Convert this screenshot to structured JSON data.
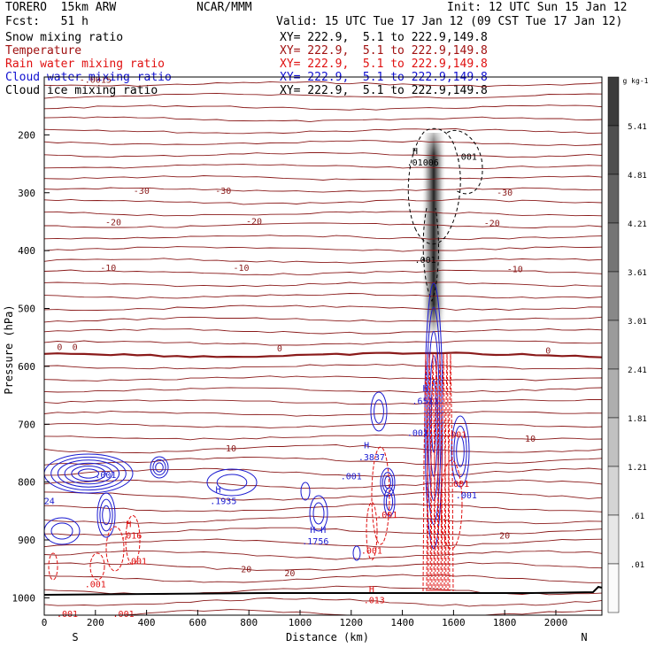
{
  "header": {
    "title": "TORERO  15km ARW",
    "org": "NCAR/MMM",
    "init": "Init: 12 UTC Sun 15 Jan 12",
    "fcst": "Fcst:   51 h",
    "valid": "Valid: 15 UTC Tue 17 Jan 12 (09 CST Tue 17 Jan 12)"
  },
  "legend": [
    {
      "label": "Snow mixing ratio",
      "xy": "XY= 222.9,  5.1 to 222.9,149.8",
      "color": "#000000"
    },
    {
      "label": "Temperature",
      "xy": "XY= 222.9,  5.1 to 222.9,149.8",
      "color": "#a01010"
    },
    {
      "label": "Rain water mixing ratio",
      "xy": "XY= 222.9,  5.1 to 222.9,149.8",
      "color": "#e01010"
    },
    {
      "label": "Cloud water mixing ratio",
      "xy": "XY= 222.9,  5.1 to 222.9,149.8",
      "color": "#1010d0"
    },
    {
      "label": "Cloud ice mixing ratio",
      "xy": "XY= 222.9,  5.1 to 222.9,149.8",
      "color": "#000000"
    }
  ],
  "chart_data": {
    "type": "cross-section contour",
    "xlabel": "Distance (km)",
    "ylabel": "Pressure (hPa)",
    "xlim": [
      0,
      2180
    ],
    "ylim": [
      1030,
      100
    ],
    "x_ticks": [
      0,
      200,
      400,
      600,
      800,
      1000,
      1200,
      1400,
      1600,
      1800,
      2000
    ],
    "y_ticks": [
      200,
      300,
      400,
      500,
      600,
      700,
      800,
      900,
      1000
    ],
    "x_end_labels": [
      "S",
      "N"
    ],
    "colorbar": {
      "unit": "g kg-1",
      "labels": [
        "5.41",
        "4.81",
        "4.21",
        "3.61",
        "3.01",
        "2.41",
        "1.81",
        "1.21",
        ".61",
        ".01"
      ]
    },
    "temperature_labels": [
      {
        "text": "-30",
        "x": 380,
        "p": 302
      },
      {
        "text": "-30",
        "x": 700,
        "p": 302
      },
      {
        "text": "-30",
        "x": 1800,
        "p": 305
      },
      {
        "text": "-20",
        "x": 270,
        "p": 356
      },
      {
        "text": "-20",
        "x": 820,
        "p": 355
      },
      {
        "text": "-20",
        "x": 1750,
        "p": 358
      },
      {
        "text": "-10",
        "x": 250,
        "p": 435
      },
      {
        "text": "-10",
        "x": 770,
        "p": 435
      },
      {
        "text": "-10",
        "x": 1840,
        "p": 437
      },
      {
        "text": "0",
        "x": 60,
        "p": 572
      },
      {
        "text": "0",
        "x": 120,
        "p": 572
      },
      {
        "text": "0",
        "x": 920,
        "p": 574
      },
      {
        "text": "0",
        "x": 1970,
        "p": 578
      },
      {
        "text": "10",
        "x": 730,
        "p": 747
      },
      {
        "text": "10",
        "x": 1900,
        "p": 730
      },
      {
        "text": "20",
        "x": 790,
        "p": 956
      },
      {
        "text": "20",
        "x": 960,
        "p": 963
      },
      {
        "text": "20",
        "x": 1800,
        "p": 898
      },
      {
        "text": "-.0015",
        "x": 200,
        "p": 110
      }
    ],
    "cloud_water_labels": [
      {
        "text": ".001",
        "x": 240,
        "p": 793
      },
      {
        "text": "24",
        "x": 20,
        "p": 838
      },
      {
        "text": "H",
        "x": 680,
        "p": 818
      },
      {
        "text": ".1935",
        "x": 700,
        "p": 838
      },
      {
        "text": "H H",
        "x": 1070,
        "p": 888
      },
      {
        "text": ".1756",
        "x": 1060,
        "p": 908
      },
      {
        "text": "H",
        "x": 1490,
        "p": 643
      },
      {
        "text": ".6511",
        "x": 1490,
        "p": 665
      },
      {
        "text": "H",
        "x": 1260,
        "p": 742
      },
      {
        "text": ".3837",
        "x": 1280,
        "p": 762
      },
      {
        "text": ".001",
        "x": 1200,
        "p": 795
      },
      {
        "text": ".001",
        "x": 1460,
        "p": 720
      },
      {
        "text": ".001",
        "x": 1650,
        "p": 828
      }
    ],
    "rain_labels": [
      {
        "text": "H",
        "x": 330,
        "p": 878
      },
      {
        "text": ".016",
        "x": 340,
        "p": 898
      },
      {
        "text": ".001",
        "x": 360,
        "p": 942
      },
      {
        "text": ".001",
        "x": 200,
        "p": 982
      },
      {
        "text": ".001",
        "x": 90,
        "p": 1033
      },
      {
        "text": ".001",
        "x": 310,
        "p": 1033
      },
      {
        "text": ".001",
        "x": 1280,
        "p": 924
      },
      {
        "text": "H",
        "x": 1280,
        "p": 990
      },
      {
        "text": ".013",
        "x": 1290,
        "p": 1009
      },
      {
        "text": ".001",
        "x": 1340,
        "p": 862
      },
      {
        "text": ".001",
        "x": 1610,
        "p": 723
      },
      {
        "text": ".001",
        "x": 1620,
        "p": 808
      }
    ],
    "snow_labels": [
      {
        "text": "H",
        "x": 1450,
        "p": 233
      },
      {
        "text": ".01006",
        "x": 1480,
        "p": 253
      },
      {
        "text": ".001",
        "x": 1650,
        "p": 243
      },
      {
        "text": ".001",
        "x": 1490,
        "p": 421
      }
    ]
  }
}
